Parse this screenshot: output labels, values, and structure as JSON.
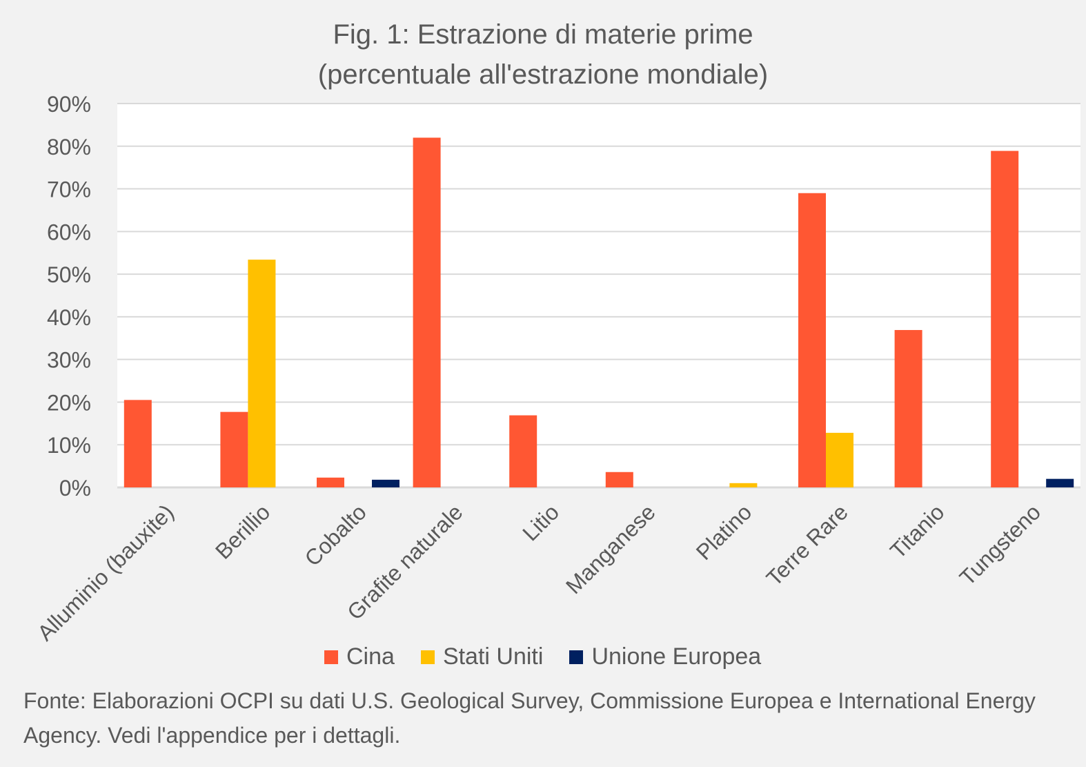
{
  "chart_data": {
    "type": "bar",
    "title": "Fig. 1: Estrazione di materie prime",
    "subtitle": "(percentuale all'estrazione mondiale)",
    "xlabel": "",
    "ylabel": "",
    "ylim": [
      0,
      90
    ],
    "yticks": [
      "0%",
      "10%",
      "20%",
      "30%",
      "40%",
      "50%",
      "60%",
      "70%",
      "80%",
      "90%"
    ],
    "grid": true,
    "legend_position": "bottom",
    "categories": [
      "Alluminio (bauxite)",
      "Berillio",
      "Cobalto",
      "Grafite naturale",
      "Litio",
      "Manganese",
      "Platino",
      "Terre Rare",
      "Titanio",
      "Tungsteno"
    ],
    "series": [
      {
        "name": "Cina",
        "color": "#ff5733",
        "values": [
          20.5,
          17.7,
          2.3,
          82,
          16.9,
          3.6,
          0,
          69,
          36.9,
          78.9
        ]
      },
      {
        "name": "Stati Uniti",
        "color": "#ffc000",
        "values": [
          0,
          53.4,
          0,
          0,
          0,
          0,
          1.0,
          12.8,
          0,
          0
        ]
      },
      {
        "name": "Unione Europea",
        "color": "#002060",
        "values": [
          0,
          0,
          1.8,
          0,
          0,
          0,
          0,
          0,
          0,
          2.0
        ]
      }
    ],
    "source": "Fonte: Elaborazioni OCPI su dati U.S. Geological Survey, Commissione Europea e International Energy Agency. Vedi l'appendice per i dettagli."
  }
}
